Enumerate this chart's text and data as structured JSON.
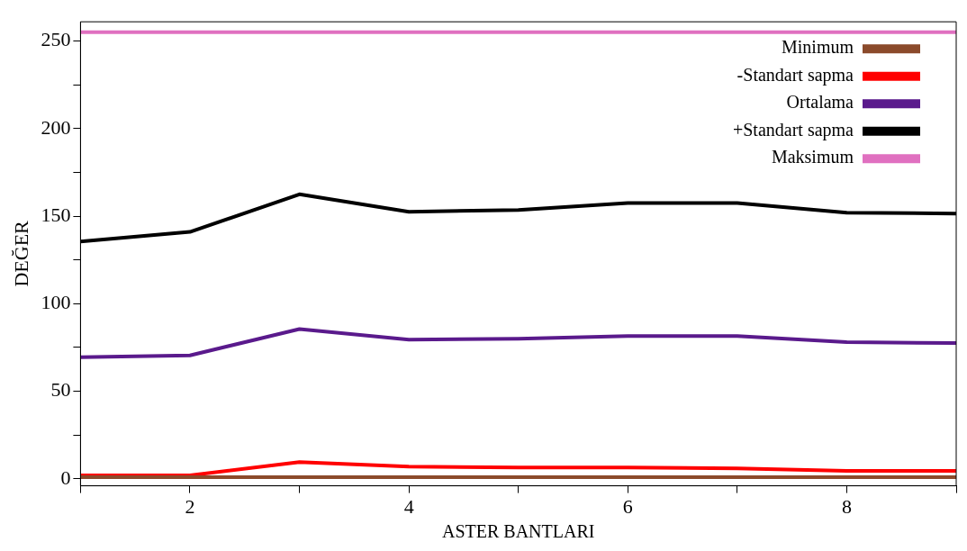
{
  "chart_data": {
    "type": "line",
    "xlabel": "ASTER BANTLARI",
    "ylabel": "DEĞER",
    "x": [
      1,
      2,
      3,
      4,
      5,
      6,
      7,
      8,
      9
    ],
    "series": [
      {
        "name": "Minimum",
        "color": "#8b4a2b",
        "values": [
          1,
          1,
          1,
          1,
          1,
          1,
          1,
          1,
          1
        ]
      },
      {
        "name": "-Standart sapma",
        "color": "#ff0000",
        "values": [
          2,
          2,
          9.5,
          7,
          6.5,
          6.5,
          6,
          4.5,
          4.5
        ]
      },
      {
        "name": "Ortalama",
        "color": "#5a1a8c",
        "values": [
          69.5,
          70.5,
          85.5,
          79.5,
          80,
          81.5,
          81.5,
          78,
          77.5
        ]
      },
      {
        "name": "+Standart sapma",
        "color": "#000000",
        "values": [
          135.5,
          141,
          162.5,
          152.5,
          153.5,
          157.5,
          157.5,
          152,
          151.5
        ]
      },
      {
        "name": "Maksimum",
        "color": "#e070c0",
        "values": [
          255,
          255,
          255,
          255,
          255,
          255,
          255,
          255,
          255
        ]
      }
    ],
    "xlim": [
      1,
      9
    ],
    "xticks": [
      {
        "value": 1,
        "label": null
      },
      2,
      {
        "value": 3,
        "label": null
      },
      4,
      {
        "value": 5,
        "label": null
      },
      6,
      {
        "value": 7,
        "label": null
      },
      8,
      {
        "value": 9,
        "label": null
      }
    ],
    "ylim": [
      -4,
      261
    ],
    "yticks": [
      0,
      {
        "value": 25,
        "label": null
      },
      50,
      {
        "value": 75,
        "label": null
      },
      100,
      {
        "value": 125,
        "label": null
      },
      150,
      {
        "value": 175,
        "label": null
      },
      200,
      {
        "value": 225,
        "label": null
      },
      250
    ],
    "grid": false,
    "legend": "top right",
    "marker": "none",
    "line_style": "solid"
  }
}
